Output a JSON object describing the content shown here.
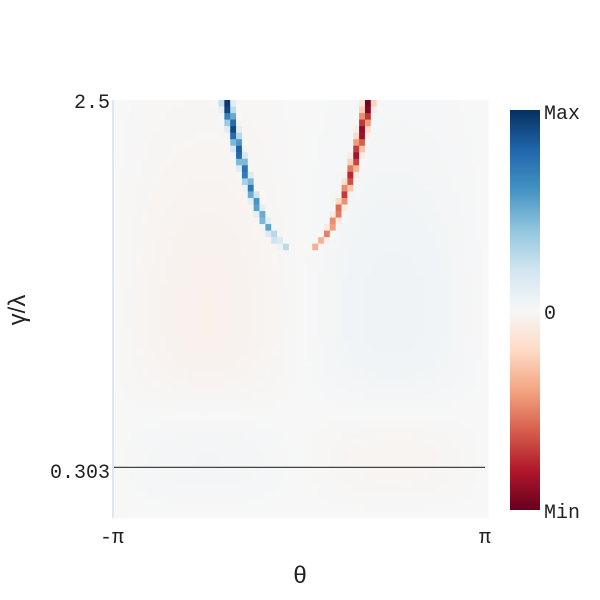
{
  "chart_data": {
    "type": "heatmap",
    "xlabel": "θ",
    "ylabel": "γ/λ",
    "x_ticks": [
      "-π",
      "π"
    ],
    "y_ticks": [
      "2.5",
      "0.303"
    ],
    "xlim": [
      -3.14159,
      3.14159
    ],
    "ylim": [
      0,
      2.5
    ],
    "reference_line": {
      "y": 0.303
    },
    "colorbar": {
      "colormap": "RdBu",
      "labels": {
        "max": "Max",
        "zero": "0",
        "min": "Min"
      },
      "colors": [
        "#67001f",
        "#b2182b",
        "#d6604d",
        "#f4a582",
        "#fddbc7",
        "#f7f7f7",
        "#d1e5f0",
        "#92c5de",
        "#4393c3",
        "#2166ac",
        "#053061"
      ]
    },
    "branches": [
      {
        "sign": "positive",
        "theta_range": [
          -1.25,
          -0.1
        ],
        "ymax": 2.5,
        "ymin": 1.6
      },
      {
        "sign": "negative",
        "theta_range": [
          0.1,
          1.15
        ],
        "ymax": 2.5,
        "ymin": 1.6
      }
    ]
  }
}
